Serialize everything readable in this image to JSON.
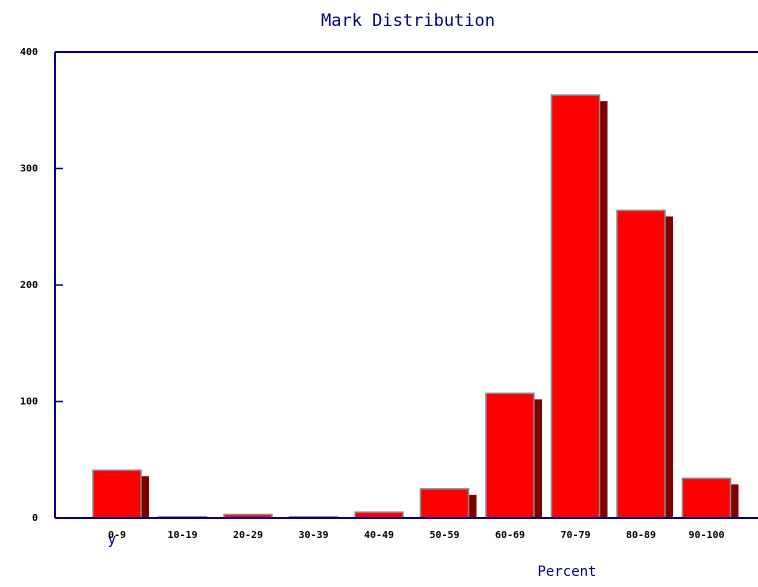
{
  "chart_data": {
    "type": "bar",
    "title": "Mark Distribution",
    "x_label": "Percent",
    "y_label": "y",
    "categories": [
      "0-9",
      "10-19",
      "20-29",
      "30-39",
      "40-49",
      "50-59",
      "60-69",
      "70-79",
      "80-89",
      "90-100"
    ],
    "values": [
      41,
      1,
      3,
      1,
      5,
      25,
      107,
      363,
      264,
      34
    ],
    "color": "#ff0000",
    "shadow_color": "#800000",
    "axis_color": "#000080",
    "ylim": [
      0,
      400
    ],
    "yticks": [
      0,
      100,
      200,
      300,
      400
    ]
  }
}
